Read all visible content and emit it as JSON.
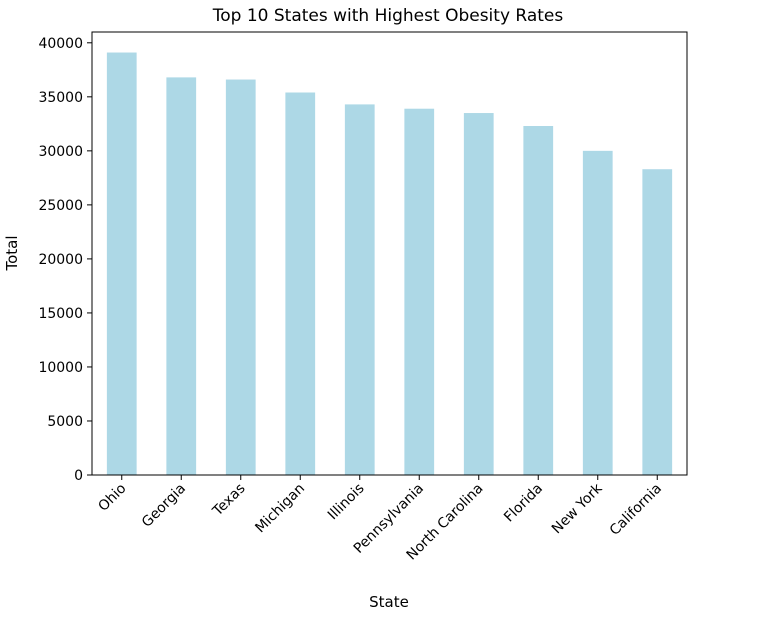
{
  "chart_data": {
    "type": "bar",
    "title": "Top 10 States with Highest Obesity Rates",
    "xlabel": "State",
    "ylabel": "Total",
    "categories": [
      "Ohio",
      "Georgia",
      "Texas",
      "Michigan",
      "Illinois",
      "Pennsylvania",
      "North Carolina",
      "Florida",
      "New York",
      "California"
    ],
    "values": [
      39100,
      36800,
      36600,
      35400,
      34300,
      33900,
      33500,
      32300,
      30000,
      28300
    ],
    "ylim": [
      0,
      41000
    ],
    "yticks": [
      0,
      5000,
      10000,
      15000,
      20000,
      25000,
      30000,
      35000,
      40000
    ],
    "grid": false,
    "legend": "none",
    "colors": {
      "bar": "#add8e6",
      "axis": "#000000",
      "text": "#000000"
    }
  }
}
